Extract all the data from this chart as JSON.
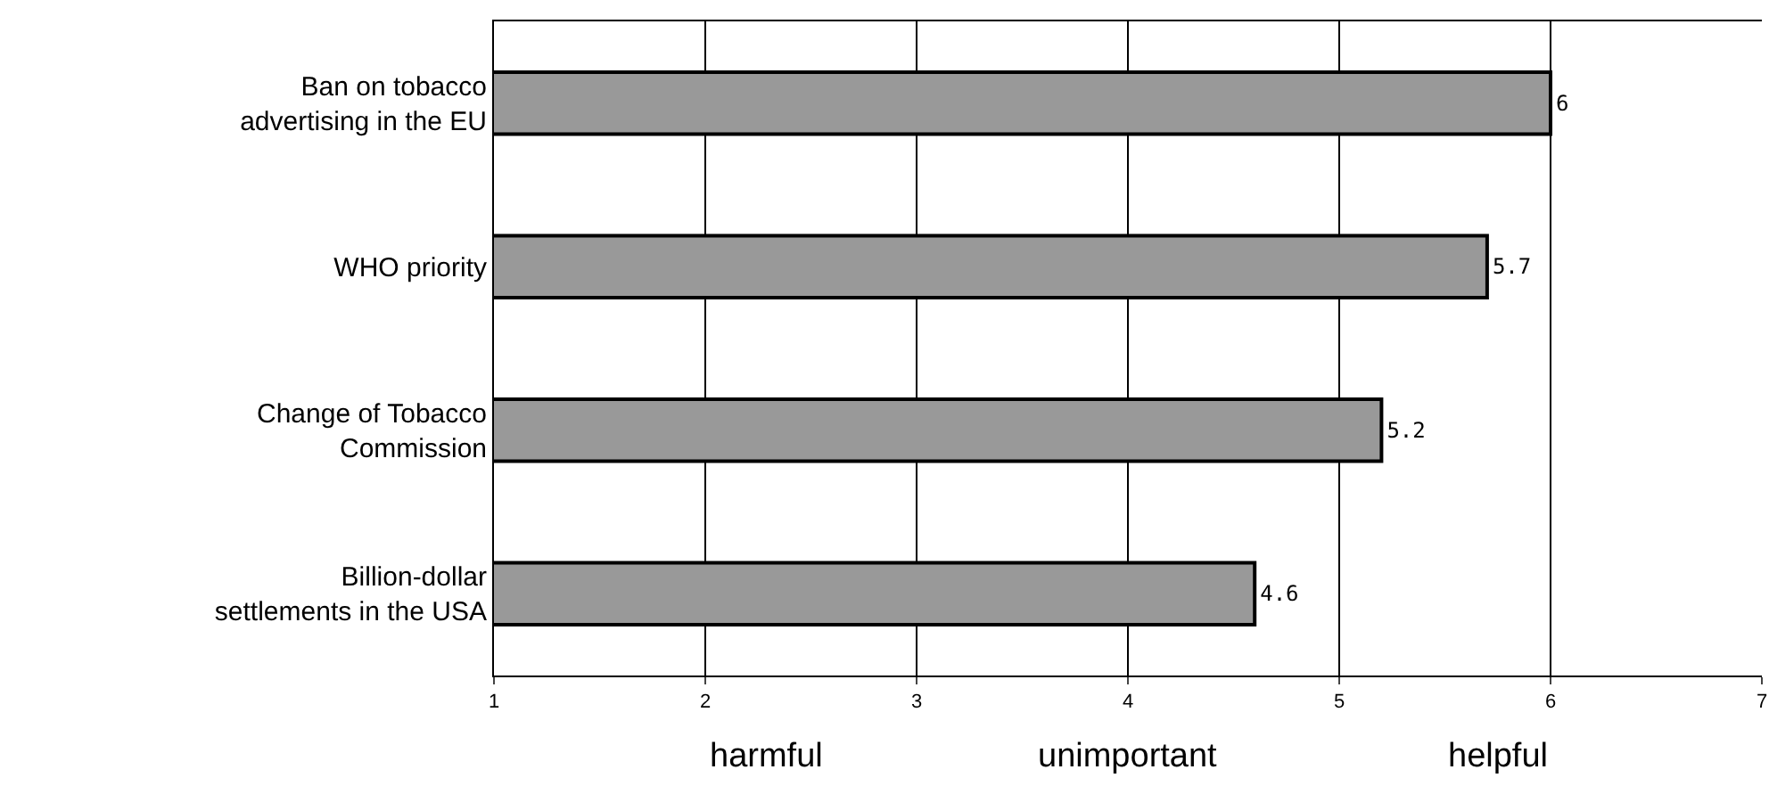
{
  "chart_data": {
    "type": "bar",
    "orientation": "horizontal",
    "categories": [
      "Ban on tobacco advertising in the EU",
      "WHO priority",
      "Change of Tobacco Commission",
      "Billion-dollar settlements in the USA"
    ],
    "values": [
      6,
      5.7,
      5.2,
      4.6
    ],
    "color": "#999999",
    "data_labels": true,
    "xlim": [
      1,
      7
    ],
    "xticks": [
      1,
      2,
      3,
      4,
      5,
      6,
      7
    ],
    "grid": "x",
    "annotations": [
      "harmful",
      "unimportant",
      "helpful"
    ]
  }
}
